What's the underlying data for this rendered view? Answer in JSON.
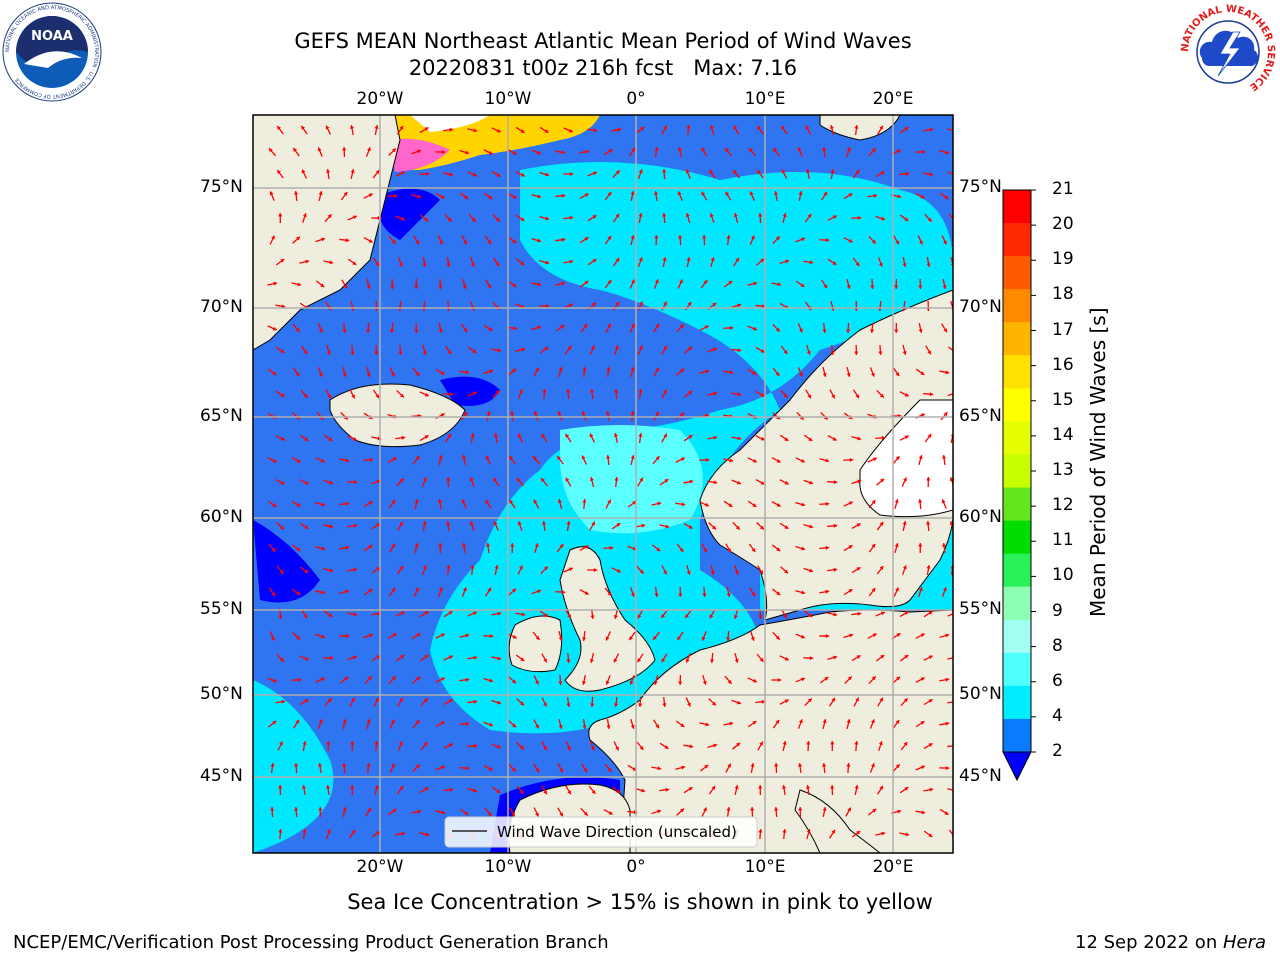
{
  "title": {
    "line1": "GEFS MEAN Northeast Atlantic Mean Period of Wind Waves",
    "line2": "20220831 t00z 216h fcst   Max: 7.16"
  },
  "map": {
    "lon_labels": [
      "20°W",
      "10°W",
      "0°",
      "10°E",
      "20°E"
    ],
    "lat_labels": [
      "75°N",
      "70°N",
      "65°N",
      "60°N",
      "55°N",
      "50°N",
      "45°N"
    ],
    "legend_label": "Wind Wave Direction (unscaled)",
    "colors": {
      "land": "#efedde",
      "ocean_dark": "#2f74f0",
      "ocean_mid": "#00e8ff",
      "ocean_light": "#5cffff",
      "low": "#0000ff",
      "arrow": "#ff0000",
      "grid": "#b0b0b0"
    }
  },
  "colorbar": {
    "label": "Mean Period of Wind Waves [s]",
    "ticks": [
      "21",
      "20",
      "19",
      "18",
      "17",
      "16",
      "15",
      "14",
      "13",
      "12",
      "11",
      "10",
      "9",
      "8",
      "6",
      "4",
      "2"
    ],
    "colors": [
      "#ff0000",
      "#ff2a00",
      "#ff5a00",
      "#ff8a00",
      "#ffb400",
      "#ffe000",
      "#ffff00",
      "#e6ff00",
      "#c8ff00",
      "#64e61e",
      "#00dc00",
      "#2af05a",
      "#8cffb4",
      "#a0fff0",
      "#50ffff",
      "#00eeff",
      "#0a7aff"
    ],
    "under_color": "#0000ff"
  },
  "caption": "Sea Ice Concentration > 15% is shown in pink to yellow",
  "footer": {
    "left": "NCEP/EMC/Verification Post Processing Product Generation Branch",
    "date": "12 Sep 2022 on ",
    "machine": "Hera"
  },
  "logos": {
    "noaa_text": "NOAA",
    "noaa_ring": "NATIONAL OCEANIC AND ATMOSPHERIC ADMINISTRATION · U.S. DEPARTMENT OF COMMERCE",
    "nws_ring": "NATIONAL WEATHER SERVICE"
  }
}
